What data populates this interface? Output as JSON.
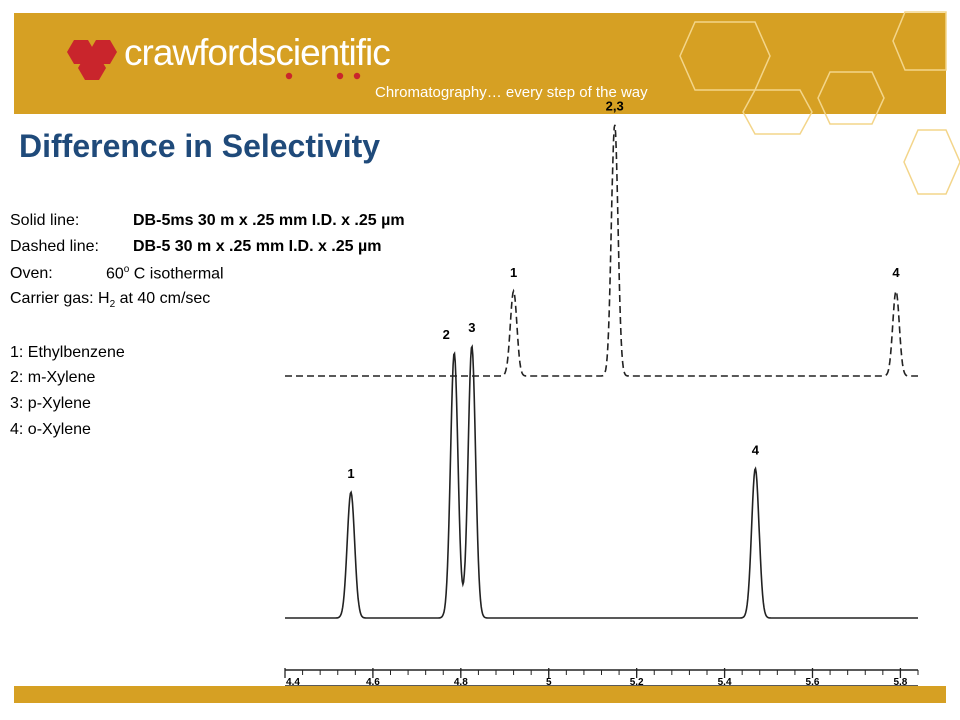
{
  "header": {
    "brand": "crawfordscientific",
    "tagline": "Chromatography… every step of the way",
    "colors": {
      "banner": "#d6a023",
      "logo_red": "#c9252c",
      "title": "#1f4a7a"
    }
  },
  "slide": {
    "title": "Difference in Selectivity",
    "conditions": [
      {
        "label": "Solid line:",
        "value": "DB-5ms 30 m x .25 mm I.D. x .25 µm"
      },
      {
        "label": "Dashed line:",
        "value": "DB-5 30 m x .25 mm I.D. x .25 µm"
      }
    ],
    "oven": {
      "label": "Oven:",
      "temp": "60",
      "sup": "o",
      "rest": " C isothermal"
    },
    "carrier": {
      "label": "Carrier gas: H",
      "sub": "2",
      "rest": " at 40 cm/sec"
    },
    "compounds": [
      "1: Ethylbenzene",
      "2: m-Xylene",
      "3: p-Xylene",
      "4: o-Xylene"
    ]
  },
  "chart_data": {
    "type": "line",
    "x_ticks": [
      4.4,
      4.6,
      4.8,
      5.0,
      5.2,
      5.4,
      5.6,
      5.8
    ],
    "x_tick_labels": [
      "4.4",
      "4.6",
      "4.8",
      "5",
      "5.2",
      "5.4",
      "5.6",
      "5.8"
    ],
    "xlim": [
      4.4,
      5.84
    ],
    "series": [
      {
        "style": "solid",
        "peaks": [
          {
            "label": "1",
            "x": 4.55,
            "height": 0.37
          },
          {
            "label": "2",
            "x": 4.785,
            "height": 0.78
          },
          {
            "label": "3",
            "x": 4.825,
            "height": 0.8
          },
          {
            "label": "4",
            "x": 5.47,
            "height": 0.44
          }
        ]
      },
      {
        "style": "dashed",
        "peaks": [
          {
            "label": "1",
            "x": 4.92,
            "height": 0.25
          },
          {
            "label": "2,3",
            "x": 5.15,
            "height": 0.74
          },
          {
            "label": "4",
            "x": 5.79,
            "height": 0.25
          }
        ]
      }
    ]
  }
}
